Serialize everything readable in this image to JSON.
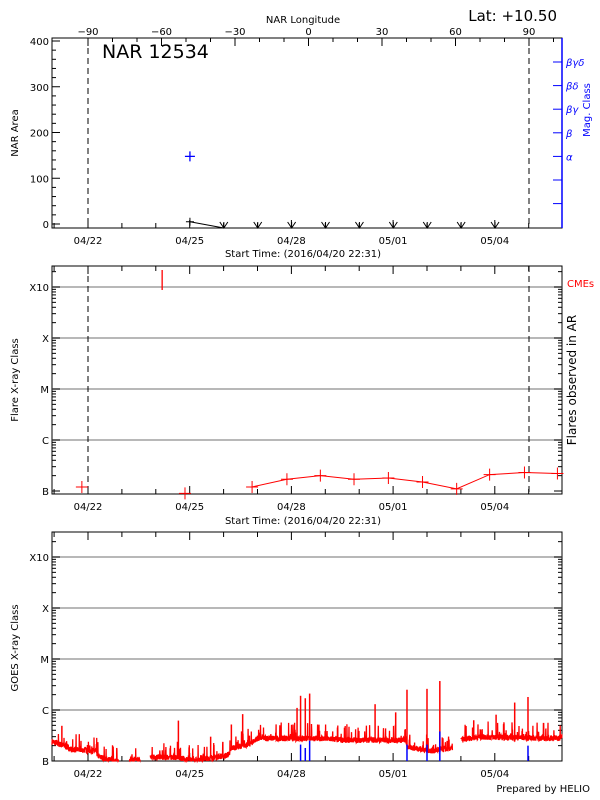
{
  "header": {
    "lat_label": "Lat: +10.50",
    "footer": "Prepared by HELIO"
  },
  "colors": {
    "flux": "#ff0000",
    "magclass": "#0000ff",
    "grid": "#a0a0a0",
    "axis": "#000000"
  },
  "chart_data": [
    {
      "type": "scatter",
      "title": "NAR 12534",
      "xlabel": "Start Time: (2016/04/20 22:31)",
      "ylabel": "NAR Area",
      "y2label": "Mag. Class",
      "top_axis_label": "NAR Longitude",
      "top_axis_ticks": [
        "-90",
        "-60",
        "-30",
        "0",
        "30",
        "60",
        "90"
      ],
      "x_ticks": [
        "04/22",
        "04/25",
        "04/28",
        "05/01",
        "05/04"
      ],
      "xlim": [
        "04/20 22:31",
        "05/05 23:30"
      ],
      "ylim": [
        0,
        400
      ],
      "y_ticks": [
        "0",
        "100",
        "200",
        "300",
        "400"
      ],
      "mag_classes": [
        "βγδ",
        "βδ",
        "βγ",
        "β",
        "α"
      ],
      "limb_lines_longitude": [
        -90,
        90
      ],
      "area_points": [
        {
          "t": "04/25 00:10",
          "area": 5
        },
        {
          "t": "04/26 00:10",
          "area": 0
        },
        {
          "t": "04/27 00:10",
          "area": 0
        },
        {
          "t": "04/28 00:10",
          "area": 0
        },
        {
          "t": "04/29 00:10",
          "area": 0
        },
        {
          "t": "04/30 00:10",
          "area": 0
        },
        {
          "t": "05/01 00:10",
          "area": 0
        },
        {
          "t": "05/02 00:10",
          "area": 0
        },
        {
          "t": "05/03 00:10",
          "area": 0
        },
        {
          "t": "05/04 00:10",
          "area": 0
        }
      ],
      "mag_class_points": [
        {
          "t": "04/25 00:10",
          "class": "α"
        }
      ]
    },
    {
      "type": "line",
      "xlabel": "Start Time: (2016/04/20 22:31)",
      "ylabel": "Flare X-ray Class",
      "y2label": "Flares observed in AR",
      "legend": "CMEs",
      "x_ticks": [
        "04/22",
        "04/25",
        "04/28",
        "05/01",
        "05/04"
      ],
      "y_ticks": [
        "B",
        "C",
        "M",
        "X",
        "X10"
      ],
      "yscale": "log",
      "grid": true,
      "flares": [
        {
          "t": "04/21 19:40",
          "class": "B1.2"
        },
        {
          "t": "04/24 20:40",
          "class": "B0.9"
        },
        {
          "t": "04/26 20:10",
          "class": "B1.2"
        },
        {
          "t": "04/27 20:50",
          "class": "B1.7"
        },
        {
          "t": "04/28 20:30",
          "class": "B2.0"
        },
        {
          "t": "04/29 20:20",
          "class": "B1.7"
        },
        {
          "t": "04/30 20:40",
          "class": "B1.8"
        },
        {
          "t": "05/01 20:50",
          "class": "B1.5"
        },
        {
          "t": "05/02 21:00",
          "class": "B1.1"
        },
        {
          "t": "05/03 20:20",
          "class": "B2.1"
        },
        {
          "t": "05/04 21:00",
          "class": "B2.3"
        },
        {
          "t": "05/05 20:20",
          "class": "B2.2"
        }
      ],
      "cmes": [
        {
          "t": "04/24 04:30"
        }
      ]
    },
    {
      "type": "line",
      "ylabel": "GOES X-ray Class",
      "x_ticks": [
        "04/22",
        "04/25",
        "04/28",
        "05/01",
        "05/04"
      ],
      "y_ticks": [
        "B",
        "C",
        "M",
        "X",
        "X10"
      ],
      "yscale": "log",
      "grid": true,
      "goes_baseline": [
        [
          "04/20 22:31",
          "B2.4"
        ],
        [
          "04/21 07:00",
          "B2.0"
        ],
        [
          "04/21 12:00",
          "B1.7"
        ],
        [
          "04/22 05:00",
          "B1.6"
        ],
        [
          "04/22 08:00",
          "B1.2"
        ],
        [
          "04/22 16:00",
          "B1.05"
        ],
        [
          "04/22 22:00",
          "B1.0"
        ],
        [
          "04/23 01:00",
          null
        ],
        [
          "04/23 05:00",
          "B1.05"
        ],
        [
          "04/23 13:00",
          "B1.05"
        ],
        [
          "04/23 14:00",
          null
        ],
        [
          "04/23 20:00",
          "B1.2"
        ],
        [
          "04/24 15:00",
          "B1.2"
        ],
        [
          "04/25 00:00",
          "B1.05"
        ],
        [
          "04/25 08:00",
          "B1.1"
        ],
        [
          "04/26 03:00",
          "B1.3"
        ],
        [
          "04/26 06:00",
          "B1.8"
        ],
        [
          "04/26 19:00",
          "B2.2"
        ],
        [
          "04/27 00:00",
          "B2.8"
        ],
        [
          "04/28 20:00",
          "B2.8"
        ],
        [
          "04/29 12:00",
          "B2.6"
        ],
        [
          "05/01 09:00",
          "B2.6"
        ],
        [
          "05/01 10:00",
          "B1.9"
        ],
        [
          "05/02 04:00",
          "B1.6"
        ],
        [
          "05/02 18:00",
          "B1.8"
        ],
        [
          "05/02 18:30",
          null
        ],
        [
          "05/03 00:00",
          "B2.6"
        ],
        [
          "05/03 12:00",
          "B3.0"
        ],
        [
          "05/05 22:00",
          "B2.8"
        ],
        [
          "05/05 23:30",
          "B3.2"
        ]
      ],
      "goes_peaks": [
        [
          "04/21 05:30",
          "B4.9"
        ],
        [
          "04/24 16:00",
          "B6.2"
        ],
        [
          "04/25 14:50",
          "B3.0"
        ],
        [
          "04/26 05:30",
          "B5.2"
        ],
        [
          "04/26 13:30",
          "B8.3"
        ],
        [
          "04/28 04:00",
          "C1.1"
        ],
        [
          "04/28 06:30",
          "C1.9"
        ],
        [
          "04/28 09:50",
          "C1.7"
        ],
        [
          "04/28 12:55",
          "C2.1"
        ],
        [
          "04/30 11:15",
          "C1.3"
        ],
        [
          "05/01 01:50",
          "B9.0"
        ],
        [
          "05/01 09:50",
          "C2.5"
        ],
        [
          "05/02 00:00",
          "C2.6"
        ],
        [
          "05/02 09:05",
          "C3.7"
        ],
        [
          "05/03 09:05",
          "B6.3"
        ],
        [
          "05/04 00:55",
          "B8.1"
        ],
        [
          "05/04 14:05",
          "C1.4"
        ],
        [
          "05/04 23:30",
          "C1.8"
        ]
      ],
      "ar_flare_markers": [
        [
          "04/28 06:30",
          "B2.1"
        ],
        [
          "04/28 09:50",
          "B1.8"
        ],
        [
          "04/28 12:55",
          "B2.5"
        ],
        [
          "05/01 09:50",
          "B2.1"
        ],
        [
          "05/02 00:00",
          "B2.1"
        ],
        [
          "05/02 09:05",
          "B3.8"
        ],
        [
          "05/04 23:30",
          "B2.0"
        ]
      ]
    }
  ]
}
